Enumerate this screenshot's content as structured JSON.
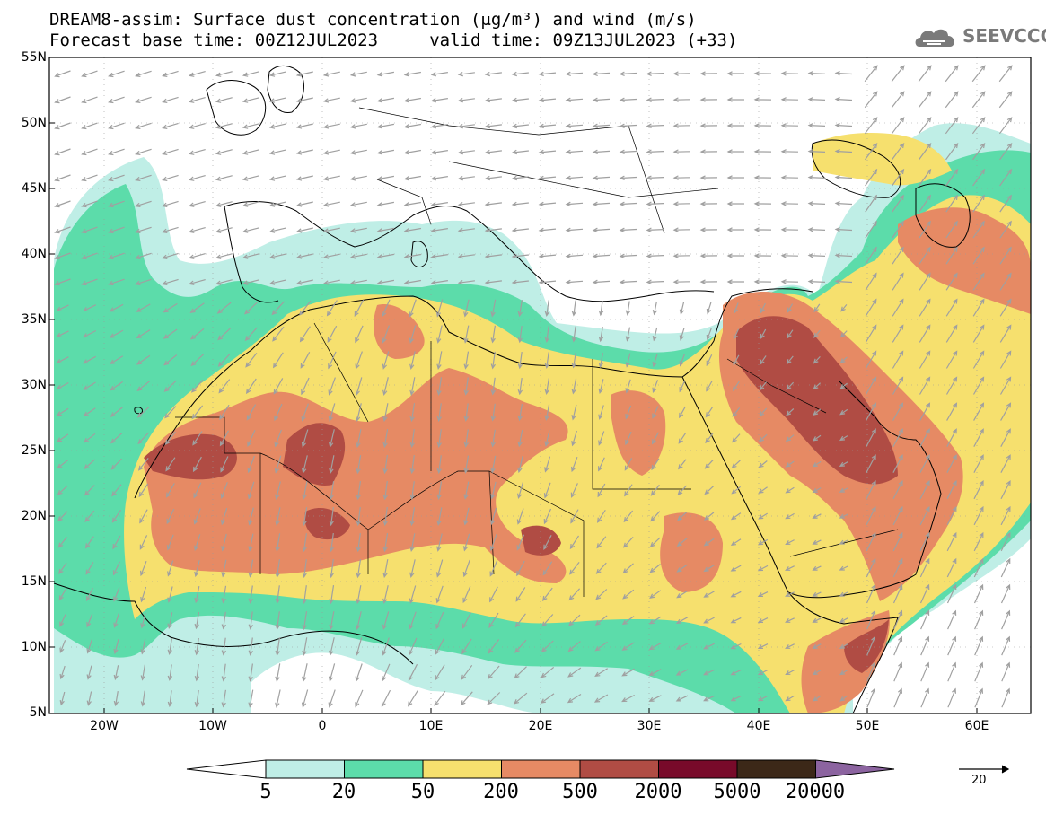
{
  "header": {
    "title_line1": "DREAM8-assim: Surface dust concentration (μg/m³) and wind (m/s)",
    "title_line2": "Forecast base time: 00Z12JUL2023     valid time: 09Z13JUL2023 (+33)"
  },
  "logo": {
    "text": "SEEVCCC",
    "icon": "cloud-logo-icon"
  },
  "axes": {
    "lat_labels": [
      "55N",
      "50N",
      "45N",
      "40N",
      "35N",
      "30N",
      "25N",
      "20N",
      "15N",
      "10N",
      "5N"
    ],
    "lon_labels": [
      "20W",
      "10W",
      "0",
      "10E",
      "20E",
      "30E",
      "40E",
      "50E",
      "60E"
    ],
    "lon_range": [
      -25,
      65
    ],
    "lat_range": [
      5,
      55
    ]
  },
  "colorbar": {
    "labels": [
      "5",
      "20",
      "50",
      "200",
      "500",
      "2000",
      "5000",
      "20000"
    ],
    "colors": [
      "#ffffff",
      "#bfeee6",
      "#5cdcaa",
      "#f6e06e",
      "#e68a64",
      "#b04c44",
      "#780a2a",
      "#3c2818",
      "#8c64a0"
    ]
  },
  "wind_reference": {
    "value": "20"
  },
  "colors": {
    "land_outline": "#000000",
    "wind_arrow": "#a0a0a0",
    "grid": "#999999"
  }
}
